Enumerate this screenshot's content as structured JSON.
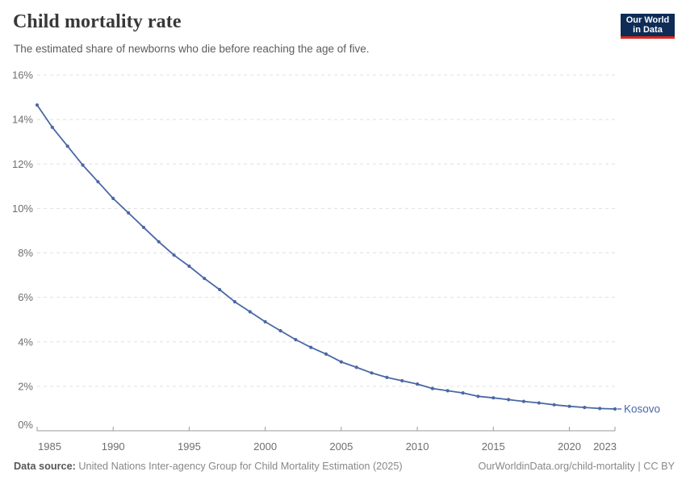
{
  "header": {
    "title": "Child mortality rate",
    "subtitle": "The estimated share of newborns who die before reaching the age of five."
  },
  "logo": {
    "line1": "Our World",
    "line2": "in Data",
    "bg_color": "#0e2c56",
    "accent_color": "#e0271c"
  },
  "footer": {
    "datasource_label": "Data source:",
    "datasource_text": "United Nations Inter-agency Group for Child Mortality Estimation (2025)",
    "right_text": "OurWorldinData.org/child-mortality | CC BY"
  },
  "chart_data": {
    "type": "line",
    "title": "Child mortality rate",
    "subtitle": "The estimated share of newborns who die before reaching the age of five.",
    "xlabel": "",
    "ylabel": "",
    "xlim": [
      1985,
      2023
    ],
    "ylim": [
      0,
      16
    ],
    "grid": "horizontal-dashed",
    "legend_position": "end-of-line-label",
    "x_ticks": [
      1985,
      1990,
      1995,
      2000,
      2005,
      2010,
      2015,
      2020,
      2023
    ],
    "y_ticks": [
      0,
      2,
      4,
      6,
      8,
      10,
      12,
      14,
      16
    ],
    "y_tick_suffix": "%",
    "colors": {
      "line": "#4a68a5",
      "gridline": "#e0e0e0",
      "axis": "#9a9a9a",
      "tick_label": "#6e6e6e"
    },
    "series": [
      {
        "name": "Kosovo",
        "color": "#4a68a5",
        "x": [
          1985,
          1986,
          1987,
          1988,
          1989,
          1990,
          1991,
          1992,
          1993,
          1994,
          1995,
          1996,
          1997,
          1998,
          1999,
          2000,
          2001,
          2002,
          2003,
          2004,
          2005,
          2006,
          2007,
          2008,
          2009,
          2010,
          2011,
          2012,
          2013,
          2014,
          2015,
          2016,
          2017,
          2018,
          2019,
          2020,
          2021,
          2022,
          2023
        ],
        "values": [
          14.65,
          13.65,
          12.8,
          11.95,
          11.2,
          10.45,
          9.8,
          9.15,
          8.5,
          7.9,
          7.4,
          6.85,
          6.35,
          5.8,
          5.35,
          4.9,
          4.5,
          4.1,
          3.75,
          3.45,
          3.1,
          2.85,
          2.6,
          2.4,
          2.25,
          2.1,
          1.9,
          1.8,
          1.7,
          1.55,
          1.48,
          1.4,
          1.32,
          1.25,
          1.17,
          1.1,
          1.05,
          1.0,
          0.98
        ]
      }
    ]
  }
}
